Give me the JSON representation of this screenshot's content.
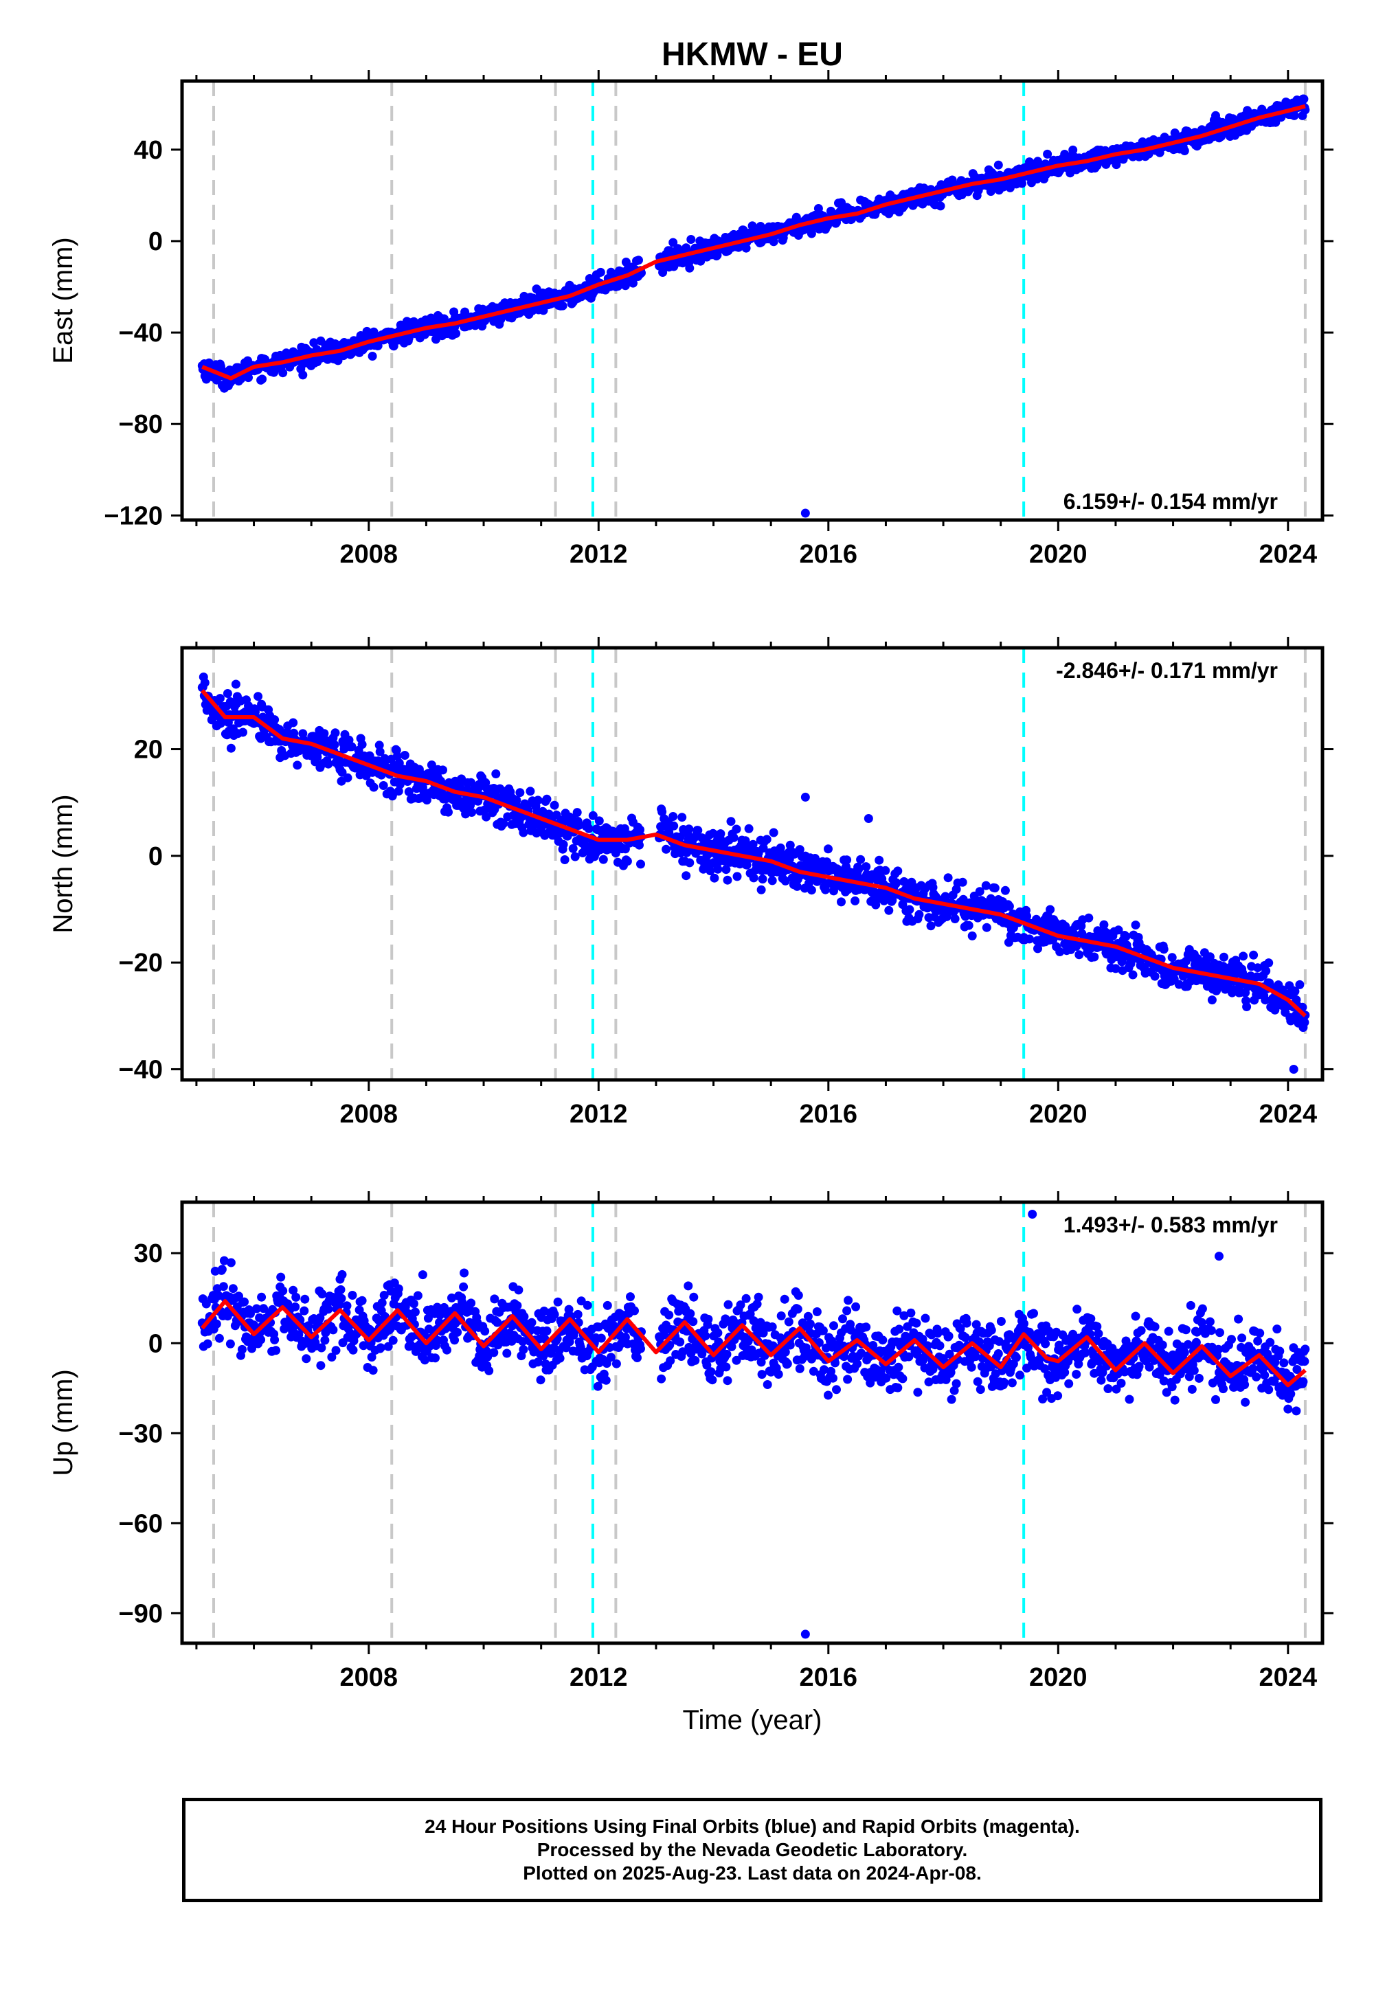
{
  "title": "HKMW - EU",
  "footer": {
    "line1": "24 Hour Positions Using Final Orbits (blue) and Rapid Orbits (magenta).",
    "line2": "Processed by the Nevada Geodetic Laboratory.",
    "line3": "Plotted on 2025-Aug-23. Last data on 2024-Apr-08."
  },
  "colors": {
    "data": "#0000ff",
    "model": "#ff0000",
    "equipment_change": "#c8c8c8",
    "earthquake": "#00ffff"
  },
  "chart_data": [
    {
      "type": "scatter",
      "name": "east",
      "ylabel": "East (mm)",
      "xlabel": "",
      "xlim": [
        2004.75,
        2024.6
      ],
      "ylim": [
        -122,
        70
      ],
      "x_ticks": [
        2008,
        2012,
        2016,
        2020,
        2024
      ],
      "y_ticks": [
        40,
        0,
        -40,
        -80,
        -120
      ],
      "rate_label": "6.159+/- 0.154 mm/yr",
      "rate_position": "bottom-right",
      "gray_lines": [
        2005.3,
        2008.4,
        2011.25,
        2012.3,
        2024.3
      ],
      "cyan_lines": [
        2011.9,
        2019.4
      ],
      "series": [
        {
          "x": [
            2005.1,
            2005.3,
            2005.6,
            2006.0,
            2006.5,
            2007.0,
            2007.5,
            2008.0,
            2008.5,
            2009.0,
            2009.5,
            2010.0,
            2010.5,
            2011.0,
            2011.5,
            2012.0,
            2012.5,
            2013.0,
            2013.5,
            2014.0,
            2014.5,
            2015.0,
            2015.5,
            2016.0,
            2016.5,
            2017.0,
            2017.5,
            2018.0,
            2018.5,
            2019.0,
            2019.5,
            2020.0,
            2020.5,
            2021.0,
            2021.5,
            2022.0,
            2022.5,
            2023.0,
            2023.5,
            2024.0,
            2024.3
          ],
          "y": [
            -55,
            -57,
            -60,
            -55,
            -53,
            -50,
            -48,
            -44,
            -41,
            -38,
            -36,
            -33,
            -30,
            -27,
            -24,
            -19,
            -15,
            -9,
            -6,
            -3,
            0,
            3,
            7,
            10,
            12,
            16,
            19,
            22,
            25,
            27,
            30,
            33,
            35,
            38,
            40,
            43,
            46,
            50,
            54,
            57,
            59
          ]
        }
      ],
      "outliers": [
        {
          "x": 2015.6,
          "y": -119
        }
      ]
    },
    {
      "type": "scatter",
      "name": "north",
      "ylabel": "North (mm)",
      "xlabel": "",
      "xlim": [
        2004.75,
        2024.6
      ],
      "ylim": [
        -42,
        39
      ],
      "x_ticks": [
        2008,
        2012,
        2016,
        2020,
        2024
      ],
      "y_ticks": [
        20,
        0,
        -20,
        -40
      ],
      "rate_label": "-2.846+/- 0.171 mm/yr",
      "rate_position": "top-right",
      "gray_lines": [
        2005.3,
        2008.4,
        2011.25,
        2012.3,
        2024.3
      ],
      "cyan_lines": [
        2011.9,
        2019.4
      ],
      "series": [
        {
          "x": [
            2005.1,
            2005.5,
            2006.0,
            2006.5,
            2007.0,
            2007.5,
            2008.0,
            2008.5,
            2009.0,
            2009.5,
            2010.0,
            2010.5,
            2011.0,
            2011.5,
            2012.0,
            2012.5,
            2013.0,
            2013.5,
            2014.0,
            2014.5,
            2015.0,
            2015.5,
            2016.0,
            2016.5,
            2017.0,
            2017.5,
            2018.0,
            2018.5,
            2019.0,
            2019.5,
            2020.0,
            2020.5,
            2021.0,
            2021.5,
            2022.0,
            2022.5,
            2023.0,
            2023.5,
            2024.0,
            2024.3
          ],
          "y": [
            31,
            26,
            26,
            22,
            21,
            19,
            17,
            15,
            14,
            12,
            11,
            9,
            7,
            5,
            3,
            3,
            4,
            2,
            1,
            0,
            -1,
            -3,
            -4,
            -5,
            -6,
            -8,
            -9,
            -10,
            -11,
            -13,
            -15,
            -16,
            -17,
            -19,
            -21,
            -22,
            -23,
            -24,
            -27,
            -30
          ]
        }
      ],
      "outliers": [
        {
          "x": 2015.6,
          "y": 11
        },
        {
          "x": 2016.7,
          "y": 7
        },
        {
          "x": 2024.1,
          "y": -40
        }
      ]
    },
    {
      "type": "scatter",
      "name": "up",
      "ylabel": "Up (mm)",
      "xlabel": "Time (year)",
      "xlim": [
        2004.75,
        2024.6
      ],
      "ylim": [
        -100,
        47
      ],
      "x_ticks": [
        2008,
        2012,
        2016,
        2020,
        2024
      ],
      "y_ticks": [
        30,
        0,
        -30,
        -60,
        -90
      ],
      "rate_label": "1.493+/- 0.583 mm/yr",
      "rate_position": "top-right",
      "gray_lines": [
        2005.3,
        2008.4,
        2011.25,
        2012.3,
        2024.3
      ],
      "cyan_lines": [
        2011.9,
        2019.4
      ],
      "series": [
        {
          "x": [
            2005.1,
            2005.5,
            2006.0,
            2006.5,
            2007.0,
            2007.5,
            2008.0,
            2008.5,
            2009.0,
            2009.5,
            2010.0,
            2010.5,
            2011.0,
            2011.5,
            2012.0,
            2012.5,
            2013.0,
            2013.5,
            2014.0,
            2014.5,
            2015.0,
            2015.5,
            2016.0,
            2016.5,
            2017.0,
            2017.5,
            2018.0,
            2018.5,
            2019.0,
            2019.4,
            2019.8,
            2020.0,
            2020.5,
            2021.0,
            2021.5,
            2022.0,
            2022.5,
            2023.0,
            2023.5,
            2024.0,
            2024.3
          ],
          "y": [
            5,
            14,
            3,
            12,
            2,
            11,
            1,
            11,
            0,
            10,
            -1,
            9,
            -2,
            8,
            -3,
            8,
            -3,
            7,
            -4,
            6,
            -4,
            5,
            -6,
            1,
            -7,
            1,
            -8,
            0,
            -8,
            3,
            -5,
            -6,
            2,
            -9,
            0,
            -10,
            -1,
            -11,
            -4,
            -14,
            -9
          ]
        }
      ],
      "outliers": [
        {
          "x": 2015.6,
          "y": -97
        },
        {
          "x": 2019.55,
          "y": 43
        },
        {
          "x": 2022.8,
          "y": 29
        }
      ]
    }
  ]
}
